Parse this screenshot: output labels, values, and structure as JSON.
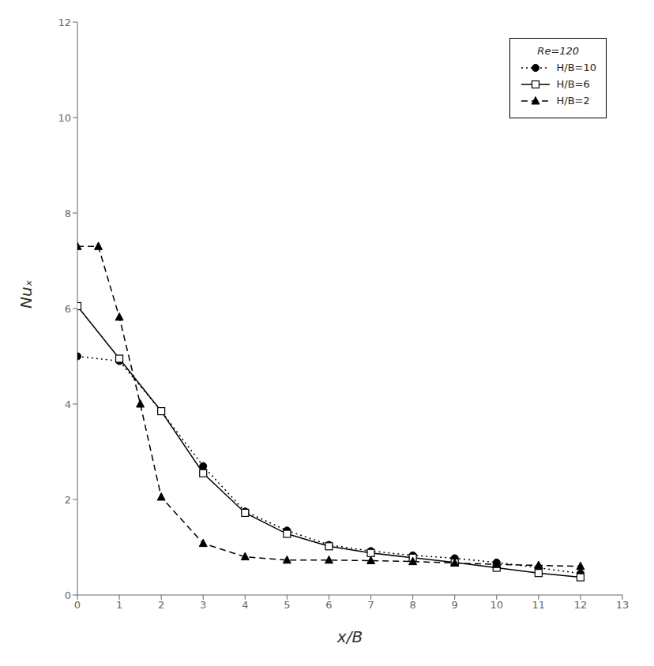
{
  "chart_data": {
    "type": "line",
    "xlabel": "x/B",
    "ylabel": "Nuₓ",
    "xlim": [
      0,
      13
    ],
    "ylim": [
      0,
      12
    ],
    "xticks": [
      0,
      1,
      2,
      3,
      4,
      5,
      6,
      7,
      8,
      9,
      10,
      11,
      12,
      13
    ],
    "yticks": [
      0,
      2,
      4,
      6,
      8,
      10,
      12
    ],
    "grid": false,
    "legend": "upper right",
    "legend_title": "Re=120",
    "series": [
      {
        "name": "H/B=10",
        "color": "black",
        "line_style": "dotted",
        "marker": "circle",
        "x": [
          0,
          1,
          2,
          3,
          4,
          5,
          6,
          7,
          8,
          9,
          10,
          11,
          12
        ],
        "values": [
          5.0,
          4.9,
          3.85,
          2.7,
          1.75,
          1.35,
          1.05,
          0.92,
          0.83,
          0.77,
          0.68,
          0.57,
          0.45
        ]
      },
      {
        "name": "H/B=6",
        "color": "black",
        "line_style": "solid",
        "marker": "open_square",
        "x": [
          0,
          1,
          2,
          3,
          4,
          5,
          6,
          7,
          8,
          9,
          10,
          11,
          12
        ],
        "values": [
          6.05,
          4.95,
          3.85,
          2.55,
          1.72,
          1.28,
          1.02,
          0.88,
          0.78,
          0.68,
          0.57,
          0.46,
          0.37
        ]
      },
      {
        "name": "H/B=2",
        "color": "black",
        "line_style": "dashed",
        "marker": "triangle",
        "x": [
          0,
          0.5,
          1,
          1.5,
          2,
          3,
          4,
          5,
          6,
          7,
          8,
          9,
          10,
          11,
          12
        ],
        "values": [
          7.3,
          7.3,
          5.82,
          4.0,
          2.05,
          1.08,
          0.8,
          0.73,
          0.73,
          0.72,
          0.7,
          0.67,
          0.64,
          0.62,
          0.6
        ]
      }
    ]
  }
}
